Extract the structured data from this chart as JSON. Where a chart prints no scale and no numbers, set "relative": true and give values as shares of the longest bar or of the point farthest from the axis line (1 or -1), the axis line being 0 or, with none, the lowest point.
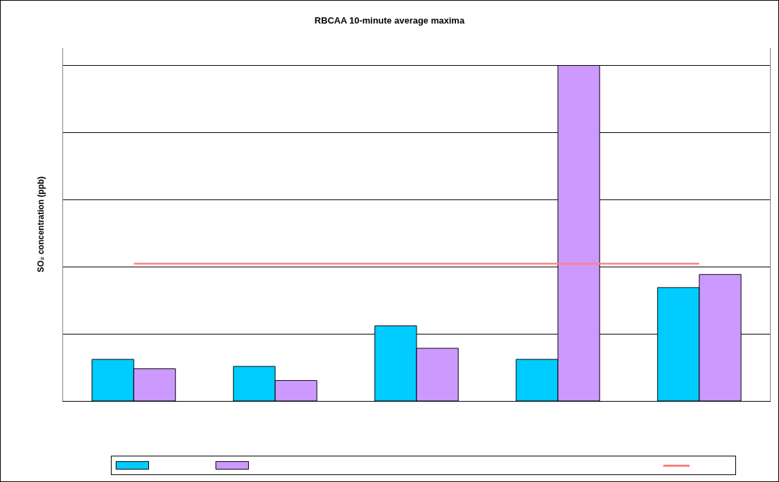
{
  "chart_data": {
    "type": "bar",
    "title": "RBCAA 10-minute average maxima",
    "ylabel": "SO₂ concentration (ppb)",
    "relative": true,
    "categories": [
      null,
      null,
      null,
      null,
      null
    ],
    "series": [
      {
        "color": "#00ccff",
        "values": [
          0.124,
          0.103,
          0.224,
          0.124,
          0.338
        ]
      },
      {
        "color": "#cc99ff",
        "values": [
          0.096,
          0.061,
          0.157,
          1,
          0.377
        ]
      }
    ],
    "ref_lines": [
      {
        "axis": "y",
        "value": 0.409,
        "color": "#ff8080"
      }
    ],
    "grid": true
  }
}
